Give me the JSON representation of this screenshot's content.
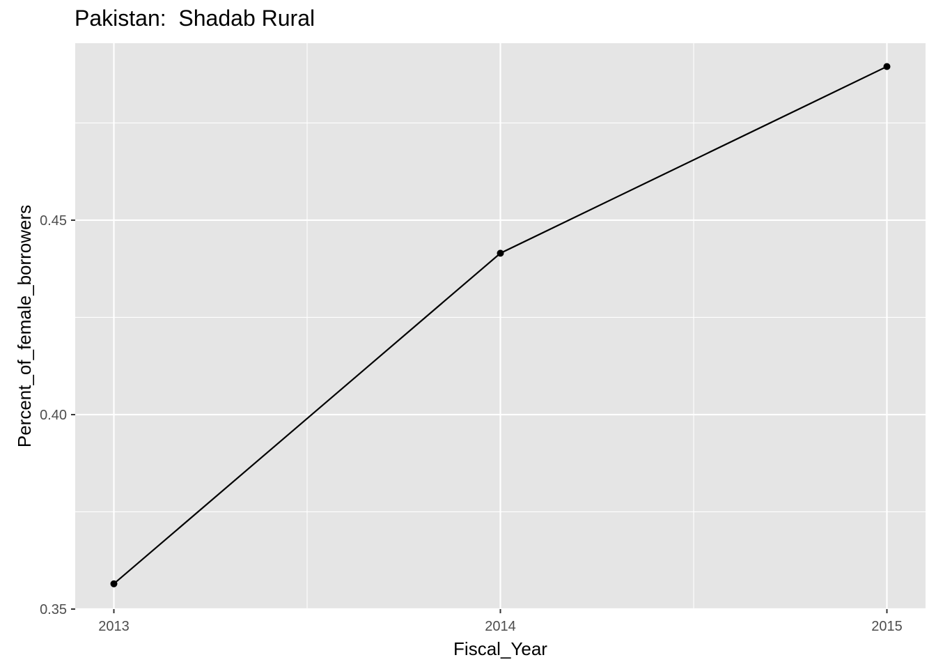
{
  "chart_data": {
    "type": "line",
    "title": "Pakistan:  Shadab Rural",
    "xlabel": "Fiscal_Year",
    "ylabel": "Percent_of_female_borrowers",
    "x": [
      2013,
      2014,
      2015
    ],
    "series": [
      {
        "values": [
          0.3565,
          0.4415,
          0.4895
        ]
      }
    ],
    "xlim": [
      2012.9,
      2015.1
    ],
    "ylim": [
      0.35,
      0.4955
    ],
    "x_ticks": [
      2013,
      2014,
      2015
    ],
    "x_tick_labels": [
      "2013",
      "2014",
      "2015"
    ],
    "y_ticks": [
      0.35,
      0.4,
      0.45
    ],
    "y_tick_labels": [
      "0.35",
      "0.40",
      "0.45"
    ],
    "grid": true,
    "markers": true,
    "colors": {
      "panel": "#e5e5e5",
      "grid": "#ffffff",
      "line": "#000000",
      "tick_text": "#4d4d4d"
    }
  }
}
